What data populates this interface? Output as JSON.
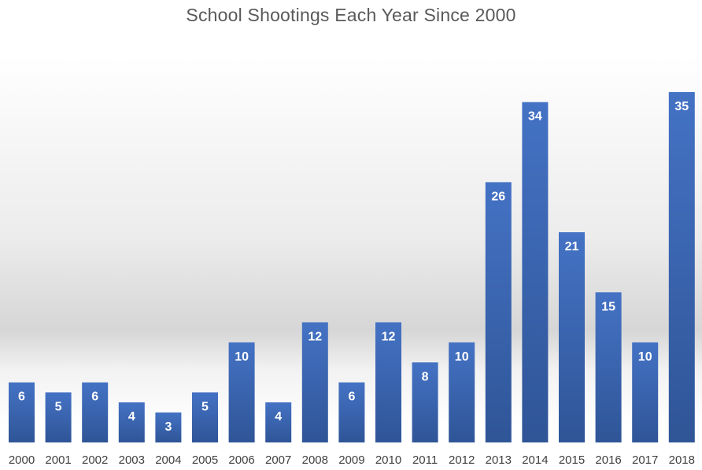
{
  "chart_data": {
    "type": "bar",
    "title": "School Shootings Each Year Since 2000",
    "xlabel": "",
    "ylabel": "",
    "categories": [
      "2000",
      "2001",
      "2002",
      "2003",
      "2004",
      "2005",
      "2006",
      "2007",
      "2008",
      "2009",
      "2010",
      "2011",
      "2012",
      "2013",
      "2014",
      "2015",
      "2016",
      "2017",
      "2018"
    ],
    "values": [
      6,
      5,
      6,
      4,
      3,
      5,
      10,
      4,
      12,
      6,
      12,
      8,
      10,
      26,
      34,
      21,
      15,
      10,
      35
    ],
    "ylim": [
      0,
      35
    ],
    "grid": false,
    "legend": "none",
    "data_labels": true,
    "colors": {
      "bar_top": "#4472c4",
      "bar_bottom": "#2f5597",
      "label": "#ffffff",
      "title": "#595959"
    }
  }
}
